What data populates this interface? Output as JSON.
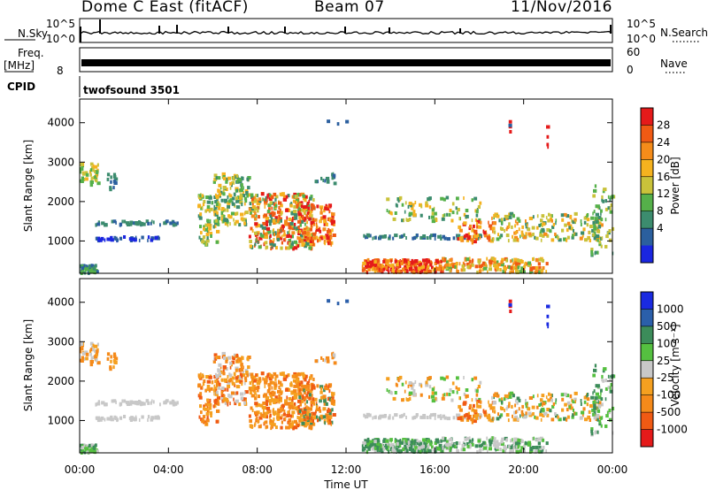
{
  "header": {
    "station": "Dome C East (fitACF)",
    "beam": "Beam 07",
    "date": "11/Nov/2016"
  },
  "strips": {
    "nsky": {
      "label": "N.Sky",
      "ticks": [
        "10^5",
        "10^0"
      ],
      "right_label": "N.Search"
    },
    "freq": {
      "label_line1": "Freq.",
      "label_line2": "[MHz]",
      "left_tick": "8",
      "right_ticks": [
        "60",
        "0"
      ],
      "right_label": "Nave"
    },
    "cpid": {
      "label": "CPID",
      "value": "twofsound 3501"
    }
  },
  "chart_data": [
    {
      "type": "heatmap",
      "name": "power",
      "ylabel": "Slant Range [km]",
      "y_ticks": [
        "4000",
        "3000",
        "2000",
        "1000"
      ],
      "ylim": [
        180,
        4600
      ],
      "colorbar": {
        "label": "Power [dB]",
        "ticks": [
          "28",
          "24",
          "20",
          "16",
          "12",
          "8",
          "4"
        ],
        "colors": [
          "#e51a1a",
          "#f05a14",
          "#f58c1a",
          "#f5b21f",
          "#c9c23a",
          "#55b04a",
          "#3c8c6e",
          "#2b5f9e",
          "#1a26e0"
        ]
      }
    },
    {
      "type": "heatmap",
      "name": "velocity",
      "ylabel": "Slant Range [km]",
      "y_ticks": [
        "4000",
        "3000",
        "2000",
        "1000"
      ],
      "ylim": [
        180,
        4600
      ],
      "colorbar": {
        "label": "Velocity [m s⁻¹]",
        "ticks": [
          "1000",
          "500",
          "100",
          "25",
          "-25",
          "-100",
          "-500",
          "-1000"
        ],
        "colors": [
          "#1a2ae0",
          "#2b5faa",
          "#3c8c5a",
          "#55c040",
          "#c8c8c8",
          "#f5a020",
          "#f58a1a",
          "#f05a14",
          "#e51a1a"
        ]
      }
    }
  ],
  "x_axis": {
    "ticks": [
      "00:00",
      "04:00",
      "08:00",
      "12:00",
      "16:00",
      "20:00",
      "00:00"
    ],
    "label": "Time UT"
  }
}
